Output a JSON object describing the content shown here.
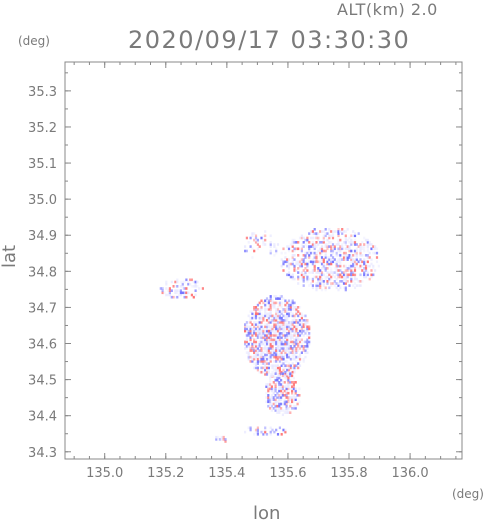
{
  "header": {
    "altitude": "ALT(km) 2.0",
    "datetime": "2020/09/17 03:30:30"
  },
  "chart_data": {
    "type": "heatmap",
    "title": "2020/09/17 03:30:30",
    "subtitle": "ALT(km) 2.0",
    "xlabel": "lon",
    "ylabel": "lat",
    "xunit": "(deg)",
    "yunit": "(deg)",
    "xlim": [
      134.87,
      136.17
    ],
    "ylim": [
      34.28,
      35.38
    ],
    "xticks": [
      "135.0",
      "135.2",
      "135.4",
      "135.6",
      "135.8",
      "136.0"
    ],
    "yticks": [
      "34.3",
      "34.4",
      "34.5",
      "34.6",
      "34.7",
      "34.8",
      "34.9",
      "35.0",
      "35.1",
      "35.2",
      "35.3"
    ],
    "grid": false,
    "colors": {
      "positive": "#ff6b6b",
      "negative": "#6b6bff",
      "neutral": "#e8e8ff",
      "axis": "#888888"
    },
    "regions": [
      {
        "lon": [
          135.57,
          135.9
        ],
        "lat": [
          34.74,
          34.92
        ],
        "density": 0.55
      },
      {
        "lon": [
          135.18,
          135.32
        ],
        "lat": [
          34.72,
          34.78
        ],
        "density": 0.5
      },
      {
        "lon": [
          135.45,
          135.67
        ],
        "lat": [
          34.5,
          34.73
        ],
        "density": 0.8
      },
      {
        "lon": [
          135.52,
          135.64
        ],
        "lat": [
          34.4,
          34.52
        ],
        "density": 0.7
      },
      {
        "lon": [
          135.45,
          135.57
        ],
        "lat": [
          34.83,
          34.91
        ],
        "density": 0.25
      },
      {
        "lon": [
          135.35,
          135.4
        ],
        "lat": [
          34.32,
          34.34
        ],
        "density": 0.6
      },
      {
        "lon": [
          135.45,
          135.6
        ],
        "lat": [
          34.34,
          34.37
        ],
        "density": 0.3
      }
    ]
  }
}
